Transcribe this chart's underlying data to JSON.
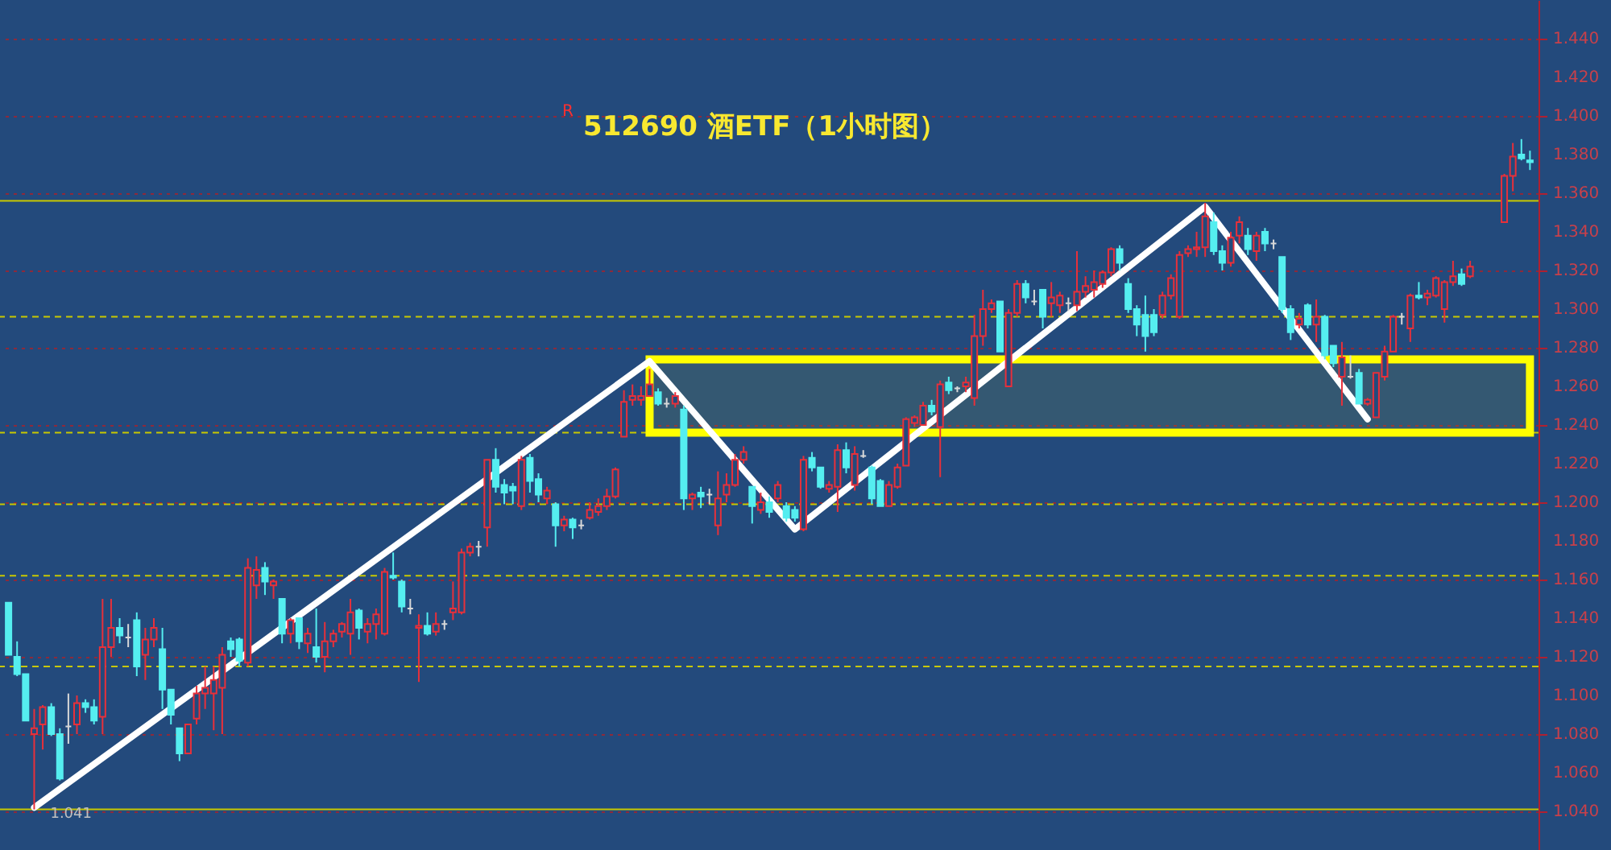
{
  "chart_data": {
    "type": "candlestick",
    "title": "512690 酒ETF（1小时图）",
    "annotations": [
      "R",
      "1.041"
    ],
    "categories": [
      null,
      null,
      null,
      null,
      null,
      null,
      null,
      null,
      null,
      null,
      null,
      null,
      null,
      null,
      null,
      null,
      null,
      null,
      null,
      null,
      null,
      null,
      null,
      null,
      null,
      null,
      null,
      null,
      null,
      null,
      null,
      null,
      null,
      null,
      null,
      null,
      null,
      null,
      null,
      null,
      null,
      null,
      null,
      null,
      null,
      null,
      null,
      null,
      null,
      null,
      null,
      null,
      null,
      null,
      null,
      null,
      null,
      null,
      null,
      null,
      null,
      null,
      null,
      null,
      null,
      null,
      null,
      null,
      null,
      null,
      null,
      null,
      null,
      null,
      null,
      null,
      null,
      null,
      null,
      null,
      null,
      null,
      null,
      null,
      null,
      null,
      null,
      null,
      null,
      null,
      null,
      null,
      null,
      null,
      null,
      null,
      null,
      null,
      null,
      null,
      null,
      null,
      null,
      null,
      null,
      null,
      null,
      null,
      null,
      null,
      null,
      null,
      null,
      null,
      null,
      null,
      null,
      null,
      null,
      null,
      null,
      null,
      null,
      null,
      null,
      null,
      null,
      null,
      null,
      null,
      null,
      null,
      null,
      null,
      null,
      null,
      null,
      null,
      null,
      null,
      null,
      null,
      null,
      null,
      null,
      null,
      null,
      null,
      null,
      null,
      null,
      null,
      null,
      null,
      null,
      null,
      null,
      null,
      null,
      null,
      null,
      null,
      null,
      null,
      null,
      null,
      null,
      null,
      null,
      null,
      null,
      null,
      null,
      null,
      null,
      null,
      null,
      null,
      null
    ],
    "ohlc": [
      [
        1.148,
        1.148,
        1.121,
        1.121
      ],
      [
        1.12,
        1.128,
        1.11,
        1.111
      ],
      [
        1.111,
        1.111,
        1.087,
        1.087
      ],
      [
        1.08,
        1.093,
        1.041,
        1.083
      ],
      [
        1.085,
        1.095,
        1.072,
        1.094
      ],
      [
        1.094,
        1.096,
        1.079,
        1.08
      ],
      [
        1.08,
        1.083,
        1.056,
        1.057
      ],
      [
        1.084,
        1.101,
        1.075,
        1.084
      ],
      [
        1.085,
        1.1,
        1.08,
        1.096
      ],
      [
        1.096,
        1.098,
        1.091,
        1.094
      ],
      [
        1.094,
        1.098,
        1.085,
        1.087
      ],
      [
        1.089,
        1.15,
        1.08,
        1.125
      ],
      [
        1.125,
        1.15,
        1.12,
        1.135
      ],
      [
        1.135,
        1.14,
        1.127,
        1.131
      ],
      [
        1.13,
        1.137,
        1.125,
        1.13
      ],
      [
        1.139,
        1.143,
        1.11,
        1.115
      ],
      [
        1.121,
        1.135,
        1.108,
        1.129
      ],
      [
        1.129,
        1.14,
        1.125,
        1.135
      ],
      [
        1.124,
        1.135,
        1.093,
        1.103
      ],
      [
        1.103,
        1.103,
        1.085,
        1.09
      ],
      [
        1.083,
        1.083,
        1.066,
        1.07
      ],
      [
        1.07,
        1.085,
        1.07,
        1.085
      ],
      [
        1.088,
        1.105,
        1.085,
        1.101
      ],
      [
        1.101,
        1.115,
        1.093,
        1.104
      ],
      [
        1.101,
        1.115,
        1.082,
        1.108
      ],
      [
        1.104,
        1.125,
        1.08,
        1.121
      ],
      [
        1.128,
        1.13,
        1.12,
        1.124
      ],
      [
        1.129,
        1.13,
        1.115,
        1.118
      ],
      [
        1.117,
        1.171,
        1.115,
        1.166
      ],
      [
        1.157,
        1.172,
        1.15,
        1.165
      ],
      [
        1.166,
        1.169,
        1.152,
        1.159
      ],
      [
        1.157,
        1.16,
        1.15,
        1.159
      ],
      [
        1.15,
        1.15,
        1.127,
        1.132
      ],
      [
        1.132,
        1.14,
        1.127,
        1.139
      ],
      [
        1.14,
        1.14,
        1.124,
        1.128
      ],
      [
        1.127,
        1.135,
        1.122,
        1.132
      ],
      [
        1.125,
        1.145,
        1.117,
        1.12
      ],
      [
        1.12,
        1.138,
        1.112,
        1.128
      ],
      [
        1.128,
        1.134,
        1.125,
        1.132
      ],
      [
        1.133,
        1.138,
        1.13,
        1.137
      ],
      [
        1.132,
        1.15,
        1.121,
        1.143
      ],
      [
        1.144,
        1.145,
        1.129,
        1.135
      ],
      [
        1.133,
        1.14,
        1.127,
        1.137
      ],
      [
        1.137,
        1.145,
        1.129,
        1.142
      ],
      [
        1.132,
        1.166,
        1.131,
        1.164
      ],
      [
        1.162,
        1.174,
        1.16,
        1.161
      ],
      [
        1.159,
        1.16,
        1.143,
        1.146
      ],
      [
        1.145,
        1.15,
        1.142,
        1.145
      ],
      [
        1.135,
        1.142,
        1.107,
        1.136
      ],
      [
        1.136,
        1.143,
        1.131,
        1.132
      ],
      [
        1.133,
        1.143,
        1.131,
        1.137
      ],
      [
        1.137,
        1.139,
        1.134,
        1.137
      ],
      [
        1.143,
        1.159,
        1.139,
        1.145
      ],
      [
        1.143,
        1.176,
        1.142,
        1.174
      ],
      [
        1.174,
        1.179,
        1.172,
        1.177
      ],
      [
        1.177,
        1.18,
        1.172,
        1.177
      ],
      [
        1.187,
        1.222,
        1.177,
        1.222
      ],
      [
        1.222,
        1.228,
        1.205,
        1.208
      ],
      [
        1.209,
        1.212,
        1.199,
        1.205
      ],
      [
        1.208,
        1.21,
        1.199,
        1.206
      ],
      [
        1.198,
        1.224,
        1.196,
        1.222
      ],
      [
        1.223,
        1.225,
        1.205,
        1.211
      ],
      [
        1.212,
        1.215,
        1.2,
        1.204
      ],
      [
        1.202,
        1.208,
        1.199,
        1.206
      ],
      [
        1.199,
        1.2,
        1.177,
        1.188
      ],
      [
        1.188,
        1.193,
        1.185,
        1.191
      ],
      [
        1.191,
        1.192,
        1.181,
        1.187
      ],
      [
        1.188,
        1.191,
        1.186,
        1.188
      ],
      [
        1.192,
        1.2,
        1.191,
        1.196
      ],
      [
        1.195,
        1.202,
        1.193,
        1.198
      ],
      [
        1.198,
        1.207,
        1.196,
        1.203
      ],
      [
        1.203,
        1.218,
        1.202,
        1.217
      ],
      [
        1.234,
        1.258,
        1.234,
        1.252
      ],
      [
        1.253,
        1.261,
        1.25,
        1.255
      ],
      [
        1.253,
        1.26,
        1.25,
        1.255
      ],
      [
        1.255,
        1.269,
        1.255,
        1.261
      ],
      [
        1.257,
        1.259,
        1.25,
        1.251
      ],
      [
        1.251,
        1.254,
        1.249,
        1.251
      ],
      [
        1.251,
        1.257,
        1.249,
        1.255
      ],
      [
        1.248,
        1.25,
        1.196,
        1.202
      ],
      [
        1.202,
        1.205,
        1.196,
        1.204
      ],
      [
        1.205,
        1.208,
        1.197,
        1.203
      ],
      [
        1.204,
        1.207,
        1.199,
        1.204
      ],
      [
        1.188,
        1.216,
        1.183,
        1.202
      ],
      [
        1.204,
        1.215,
        1.2,
        1.209
      ],
      [
        1.209,
        1.225,
        1.208,
        1.222
      ],
      [
        1.222,
        1.229,
        1.22,
        1.226
      ],
      [
        1.208,
        1.208,
        1.189,
        1.198
      ],
      [
        1.196,
        1.205,
        1.194,
        1.2
      ],
      [
        1.2,
        1.203,
        1.192,
        1.195
      ],
      [
        1.202,
        1.211,
        1.2,
        1.209
      ],
      [
        1.198,
        1.2,
        1.19,
        1.192
      ],
      [
        1.196,
        1.198,
        1.19,
        1.192
      ],
      [
        1.186,
        1.224,
        1.185,
        1.222
      ],
      [
        1.223,
        1.226,
        1.216,
        1.218
      ],
      [
        1.218,
        1.218,
        1.207,
        1.208
      ],
      [
        1.207,
        1.211,
        1.205,
        1.209
      ],
      [
        1.208,
        1.23,
        1.195,
        1.227
      ],
      [
        1.227,
        1.231,
        1.215,
        1.218
      ],
      [
        1.209,
        1.229,
        1.206,
        1.225
      ],
      [
        1.224,
        1.227,
        1.223,
        1.224
      ],
      [
        1.218,
        1.219,
        1.199,
        1.202
      ],
      [
        1.211,
        1.212,
        1.198,
        1.198
      ],
      [
        1.198,
        1.211,
        1.198,
        1.209
      ],
      [
        1.208,
        1.22,
        1.207,
        1.218
      ],
      [
        1.219,
        1.244,
        1.219,
        1.243
      ],
      [
        1.241,
        1.245,
        1.239,
        1.244
      ],
      [
        1.24,
        1.252,
        1.24,
        1.25
      ],
      [
        1.25,
        1.253,
        1.245,
        1.247
      ],
      [
        1.239,
        1.263,
        1.213,
        1.261
      ],
      [
        1.262,
        1.265,
        1.256,
        1.258
      ],
      [
        1.259,
        1.26,
        1.257,
        1.259
      ],
      [
        1.26,
        1.265,
        1.257,
        1.262
      ],
      [
        1.254,
        1.297,
        1.25,
        1.286
      ],
      [
        1.286,
        1.31,
        1.281,
        1.3
      ],
      [
        1.3,
        1.305,
        1.298,
        1.303
      ],
      [
        1.304,
        1.304,
        1.278,
        1.278
      ],
      [
        1.26,
        1.3,
        1.26,
        1.298
      ],
      [
        1.298,
        1.315,
        1.296,
        1.313
      ],
      [
        1.313,
        1.315,
        1.303,
        1.306
      ],
      [
        1.304,
        1.31,
        1.302,
        1.304
      ],
      [
        1.31,
        1.31,
        1.29,
        1.296
      ],
      [
        1.303,
        1.314,
        1.296,
        1.306
      ],
      [
        1.302,
        1.309,
        1.298,
        1.307
      ],
      [
        1.303,
        1.306,
        1.299,
        1.303
      ],
      [
        1.302,
        1.33,
        1.299,
        1.309
      ],
      [
        1.309,
        1.317,
        1.306,
        1.312
      ],
      [
        1.31,
        1.32,
        1.306,
        1.314
      ],
      [
        1.313,
        1.32,
        1.311,
        1.319
      ],
      [
        1.319,
        1.332,
        1.317,
        1.331
      ],
      [
        1.331,
        1.333,
        1.32,
        1.324
      ],
      [
        1.313,
        1.316,
        1.298,
        1.3
      ],
      [
        1.3,
        1.302,
        1.286,
        1.292
      ],
      [
        1.297,
        1.307,
        1.278,
        1.286
      ],
      [
        1.297,
        1.3,
        1.286,
        1.288
      ],
      [
        1.297,
        1.309,
        1.295,
        1.307
      ],
      [
        1.307,
        1.318,
        1.305,
        1.316
      ],
      [
        1.296,
        1.33,
        1.295,
        1.328
      ],
      [
        1.329,
        1.333,
        1.327,
        1.331
      ],
      [
        1.331,
        1.34,
        1.327,
        1.332
      ],
      [
        1.332,
        1.355,
        1.327,
        1.348
      ],
      [
        1.345,
        1.35,
        1.328,
        1.33
      ],
      [
        1.33,
        1.333,
        1.32,
        1.324
      ],
      [
        1.324,
        1.34,
        1.322,
        1.337
      ],
      [
        1.338,
        1.348,
        1.334,
        1.345
      ],
      [
        1.338,
        1.342,
        1.328,
        1.331
      ],
      [
        1.33,
        1.34,
        1.325,
        1.338
      ],
      [
        1.34,
        1.342,
        1.33,
        1.334
      ],
      [
        1.334,
        1.336,
        1.331,
        1.334
      ],
      [
        1.327,
        1.327,
        1.298,
        1.3
      ],
      [
        1.3,
        1.302,
        1.284,
        1.288
      ],
      [
        1.292,
        1.298,
        1.29,
        1.295
      ],
      [
        1.302,
        1.303,
        1.29,
        1.292
      ],
      [
        1.292,
        1.305,
        1.283,
        1.296
      ],
      [
        1.296,
        1.297,
        1.274,
        1.276
      ],
      [
        1.281,
        1.281,
        1.27,
        1.272
      ],
      [
        1.265,
        1.283,
        1.25,
        1.275
      ],
      [
        1.265,
        1.276,
        1.264,
        1.265
      ],
      [
        1.267,
        1.269,
        1.251,
        1.251
      ],
      [
        1.251,
        1.254,
        1.25,
        1.253
      ],
      [
        1.244,
        1.267,
        1.244,
        1.267
      ],
      [
        1.265,
        1.281,
        1.263,
        1.278
      ],
      [
        1.278,
        1.297,
        1.278,
        1.296
      ],
      [
        1.296,
        1.298,
        1.292,
        1.296
      ],
      [
        1.29,
        1.308,
        1.283,
        1.307
      ],
      [
        1.307,
        1.314,
        1.305,
        1.306
      ],
      [
        1.306,
        1.31,
        1.302,
        1.308
      ],
      [
        1.307,
        1.317,
        1.306,
        1.316
      ],
      [
        1.3,
        1.315,
        1.293,
        1.314
      ],
      [
        1.314,
        1.325,
        1.312,
        1.317
      ],
      [
        1.318,
        1.321,
        1.312,
        1.313
      ],
      [
        1.317,
        1.325,
        1.316,
        1.322
      ],
      null,
      null,
      null,
      [
        1.345,
        1.37,
        1.345,
        1.369
      ],
      [
        1.369,
        1.386,
        1.361,
        1.379
      ],
      [
        1.38,
        1.388,
        1.377,
        1.378
      ],
      [
        1.377,
        1.382,
        1.372,
        1.376
      ]
    ],
    "series": [
      {
        "type": "line",
        "color": "#ffffff",
        "values": [
          null,
          null,
          null,
          1.042,
          null,
          null,
          null,
          null,
          null,
          null,
          null,
          null,
          null,
          null,
          null,
          null,
          null,
          null,
          null,
          null,
          null,
          null,
          null,
          null,
          null,
          null,
          null,
          null,
          null,
          null,
          null,
          null,
          null,
          null,
          null,
          null,
          null,
          null,
          null,
          null,
          null,
          null,
          null,
          null,
          null,
          null,
          null,
          null,
          null,
          null,
          null,
          null,
          null,
          null,
          null,
          null,
          null,
          null,
          null,
          null,
          null,
          null,
          null,
          null,
          null,
          null,
          null,
          null,
          null,
          null,
          null,
          null,
          null,
          null,
          null,
          1.273,
          null,
          null,
          null,
          null,
          null,
          null,
          null,
          null,
          null,
          null,
          null,
          null,
          null,
          null,
          null,
          null,
          1.186,
          null,
          null,
          null,
          null,
          null,
          null,
          null,
          null,
          null,
          null,
          null,
          null,
          null,
          null,
          null,
          null,
          null,
          null,
          null,
          null,
          null,
          null,
          null,
          null,
          null,
          null,
          null,
          null,
          null,
          null,
          null,
          null,
          null,
          null,
          null,
          null,
          null,
          null,
          null,
          null,
          null,
          null,
          null,
          null,
          null,
          null,
          null,
          1.353,
          null,
          null,
          null,
          null,
          null,
          null,
          null,
          null,
          null,
          null,
          null,
          null,
          null,
          null,
          null,
          null,
          null,
          null,
          1.243,
          null,
          null,
          null,
          null,
          null,
          null,
          null,
          null,
          null,
          null,
          null,
          null,
          null,
          null,
          null,
          null,
          null,
          null,
          null
        ]
      }
    ],
    "bands": [
      {
        "axis": "y",
        "from": 1.236,
        "to": 1.274,
        "color": "#ffff00"
      }
    ],
    "ref_lines": [
      {
        "axis": "y",
        "value": 1.356,
        "color": "#c8c800",
        "line_style": "solid"
      },
      {
        "axis": "y",
        "value": 1.041,
        "color": "#c8c800",
        "line_style": "solid"
      },
      {
        "axis": "y",
        "value": 1.296,
        "color": "#c8c800",
        "line_style": "dashed"
      },
      {
        "axis": "y",
        "value": 1.236,
        "color": "#c8c800",
        "line_style": "dashed"
      },
      {
        "axis": "y",
        "value": 1.199,
        "color": "#c8c800",
        "line_style": "dashed"
      },
      {
        "axis": "y",
        "value": 1.162,
        "color": "#c8c800",
        "line_style": "dashed"
      },
      {
        "axis": "y",
        "value": 1.115,
        "color": "#c8c800",
        "line_style": "dashed"
      }
    ],
    "ylim": [
      1.02,
      1.46
    ],
    "yticks": [
      {
        "value": 1.04,
        "label": "1.040"
      },
      {
        "value": 1.06,
        "label": "1.060"
      },
      {
        "value": 1.08,
        "label": "1.080"
      },
      {
        "value": 1.1,
        "label": "1.100"
      },
      {
        "value": 1.12,
        "label": "1.120"
      },
      {
        "value": 1.14,
        "label": "1.140"
      },
      {
        "value": 1.16,
        "label": "1.160"
      },
      {
        "value": 1.18,
        "label": "1.180"
      },
      {
        "value": 1.2,
        "label": "1.200"
      },
      {
        "value": 1.22,
        "label": "1.220"
      },
      {
        "value": 1.24,
        "label": "1.240"
      },
      {
        "value": 1.26,
        "label": "1.260"
      },
      {
        "value": 1.28,
        "label": "1.280"
      },
      {
        "value": 1.3,
        "label": "1.300"
      },
      {
        "value": 1.32,
        "label": "1.320"
      },
      {
        "value": 1.34,
        "label": "1.340"
      },
      {
        "value": 1.36,
        "label": "1.360"
      },
      {
        "value": 1.38,
        "label": "1.380"
      },
      {
        "value": 1.4,
        "label": "1.400"
      },
      {
        "value": 1.42,
        "label": "1.420"
      },
      {
        "value": 1.44,
        "label": "1.440"
      }
    ],
    "grid": "y",
    "tick_labels": "y"
  }
}
